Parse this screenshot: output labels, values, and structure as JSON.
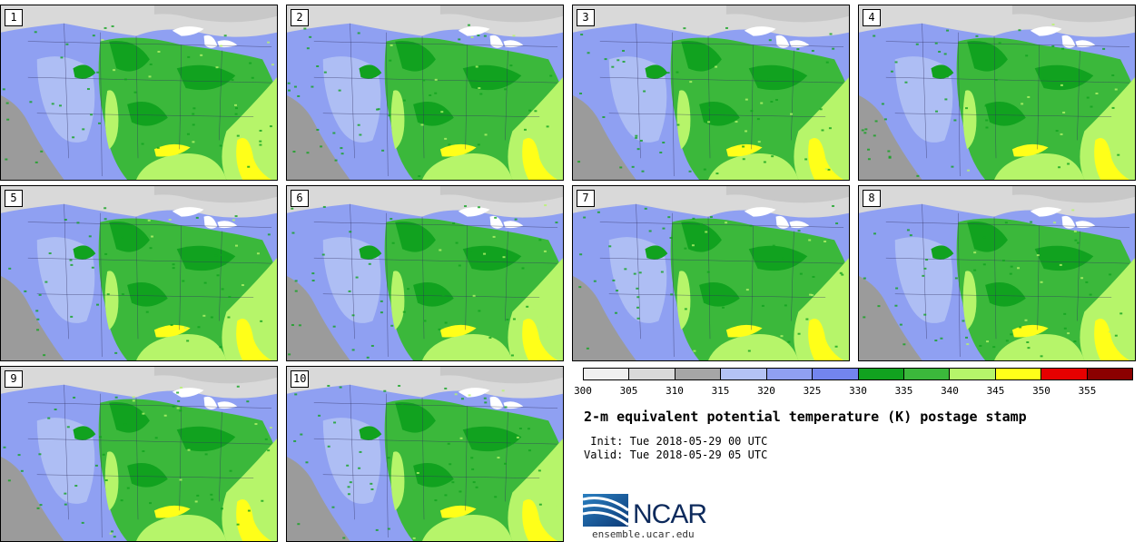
{
  "title": "2-m equivalent potential temperature (K) postage stamp",
  "init": " Init: Tue 2018-05-29 00 UTC",
  "valid": "Valid: Tue 2018-05-29 05 UTC",
  "site": "ensemble.ucar.edu",
  "logo_text": "NCAR",
  "members": [
    "1",
    "2",
    "3",
    "4",
    "5",
    "6",
    "7",
    "8",
    "9",
    "10"
  ],
  "colorbar": {
    "ticks": [
      "300",
      "305",
      "310",
      "315",
      "320",
      "325",
      "330",
      "335",
      "340",
      "345",
      "350",
      "355"
    ],
    "colors": [
      "#f0f0f0",
      "#d9d9d9",
      "#a6a6a6",
      "#b4c3f5",
      "#8fa0f2",
      "#7385ee",
      "#11a21f",
      "#3bb83b",
      "#b6f56a",
      "#ffff19",
      "#e60000",
      "#8b0000"
    ]
  },
  "map_colors": {
    "ocean_pacific": "#9b9b9b",
    "ocean_north": "#c8c8c8",
    "canada": "#d9d9d9",
    "west": "#8fa0f2",
    "west_light": "#b4c3f5",
    "plains": "#3bb83b",
    "dark_green": "#11a21f",
    "light_green": "#b6f56a",
    "yellow": "#ffff19",
    "lakes": "#ffffff"
  }
}
